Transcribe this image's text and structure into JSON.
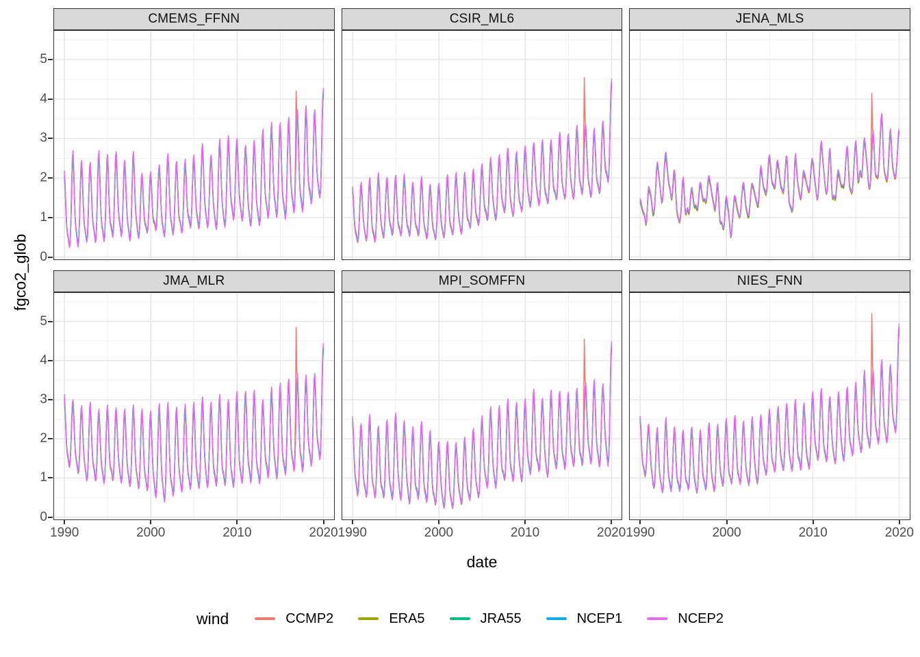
{
  "chart_data": {
    "type": "line",
    "title": "",
    "xlabel": "date",
    "ylabel": "fgco2_glob",
    "legend_title": "wind",
    "legend_position": "bottom",
    "grid": "on",
    "facet_layout": {
      "rows": 2,
      "cols": 3
    },
    "x_domain": [
      1988.8,
      2021.2
    ],
    "y_domain": [
      -0.06,
      5.73
    ],
    "x_major_ticks": [
      1990,
      2000,
      2010,
      2020
    ],
    "x_minor_ticks": [
      1995,
      2005,
      2015
    ],
    "y_major_ticks": [
      0,
      1,
      2,
      3,
      4,
      5
    ],
    "y_minor_ticks": [
      0.5,
      1.5,
      2.5,
      3.5,
      4.5,
      5.5
    ],
    "x_start": 1990,
    "x_end": 2020,
    "points_per_year": 12,
    "seasonal": {
      "h2": 0.3,
      "h2_phase": 0.6
    },
    "series": [
      {
        "name": "CCMP2",
        "color": "#F8766D",
        "amp_scale": 1.02,
        "offset": -0.05
      },
      {
        "name": "ERA5",
        "color": "#A3A500",
        "amp_scale": 0.99,
        "offset": -0.06
      },
      {
        "name": "JRA55",
        "color": "#00BF7D",
        "amp_scale": 1.05,
        "offset": -0.01
      },
      {
        "name": "NCEP1",
        "color": "#00B0F6",
        "amp_scale": 1.0,
        "offset": 0.0
      },
      {
        "name": "NCEP2",
        "color": "#E76BF3",
        "amp_scale": 1.09,
        "offset": 0.02
      }
    ],
    "panels": [
      {
        "name": "CMEMS_FFNN",
        "peaks": [
          2.1,
          2.55,
          2.35,
          2.35,
          2.65,
          2.5,
          2.6,
          2.4,
          2.55,
          2.0,
          2.05,
          2.3,
          2.55,
          2.3,
          2.4,
          2.5,
          2.8,
          2.55,
          2.9,
          3.0,
          2.95,
          2.8,
          2.9,
          3.1,
          3.3,
          3.3,
          3.5,
          3.6,
          3.65,
          3.6,
          4.15
        ],
        "troughs": [
          0.25,
          0.3,
          0.45,
          0.4,
          0.45,
          0.5,
          0.6,
          0.5,
          0.55,
          0.6,
          0.7,
          0.65,
          0.6,
          0.7,
          0.65,
          0.8,
          0.85,
          0.8,
          0.85,
          0.9,
          1.0,
          0.95,
          0.85,
          1.0,
          1.1,
          0.95,
          1.1,
          1.2,
          1.3,
          1.4,
          1.8
        ],
        "noise": 0.09,
        "noise_seed": 11,
        "spike": {
          "series": "CCMP2",
          "x": 2016.8333,
          "width": 0.07,
          "value": 4.2
        }
      },
      {
        "name": "CSIR_ML6",
        "peaks": [
          1.7,
          1.85,
          1.9,
          2.1,
          2.0,
          1.95,
          2.1,
          1.9,
          2.0,
          1.85,
          1.9,
          2.0,
          2.1,
          2.05,
          2.2,
          2.3,
          2.5,
          2.55,
          2.7,
          2.6,
          2.8,
          2.9,
          2.85,
          2.9,
          3.0,
          3.1,
          3.3,
          3.3,
          3.2,
          3.3,
          4.35
        ],
        "troughs": [
          0.45,
          0.5,
          0.45,
          0.55,
          0.6,
          0.55,
          0.6,
          0.55,
          0.6,
          0.5,
          0.55,
          0.6,
          0.7,
          0.65,
          0.8,
          0.9,
          1.0,
          1.1,
          1.2,
          1.1,
          1.3,
          1.4,
          1.35,
          1.4,
          1.5,
          1.55,
          1.6,
          1.65,
          1.6,
          1.7,
          2.1
        ],
        "noise": 0.08,
        "noise_seed": 22,
        "spike": {
          "series": "CCMP2",
          "x": 2016.8333,
          "width": 0.07,
          "value": 4.55
        }
      },
      {
        "name": "JENA_MLS",
        "peaks": [
          1.4,
          1.8,
          2.2,
          2.75,
          2.1,
          1.8,
          1.7,
          1.9,
          2.1,
          1.8,
          1.5,
          1.3,
          1.9,
          2.1,
          2.3,
          2.4,
          2.6,
          2.3,
          2.4,
          2.2,
          2.6,
          2.9,
          2.5,
          2.4,
          2.5,
          2.7,
          2.9,
          3.1,
          3.3,
          3.0,
          3.05
        ],
        "troughs": [
          0.85,
          1.1,
          1.3,
          1.6,
          1.2,
          1.1,
          1.0,
          1.1,
          1.3,
          1.0,
          0.75,
          0.65,
          1.2,
          1.3,
          1.4,
          1.5,
          1.6,
          1.4,
          1.5,
          1.3,
          1.6,
          1.8,
          1.6,
          1.5,
          1.7,
          1.8,
          1.9,
          2.1,
          2.2,
          2.1,
          2.3
        ],
        "noise": 0.3,
        "noise_seed": 33,
        "spike": {
          "series": "CCMP2",
          "x": 2016.8333,
          "width": 0.07,
          "value": 4.15
        }
      },
      {
        "name": "JMA_MLR",
        "peaks": [
          3.0,
          2.9,
          2.75,
          2.8,
          2.7,
          2.8,
          2.75,
          2.7,
          2.8,
          2.65,
          2.7,
          2.75,
          2.8,
          2.7,
          2.75,
          2.8,
          2.9,
          2.85,
          3.0,
          2.9,
          3.1,
          3.2,
          3.1,
          3.0,
          3.2,
          3.3,
          3.5,
          3.6,
          3.5,
          3.6,
          4.4
        ],
        "troughs": [
          1.5,
          1.3,
          1.1,
          1.0,
          0.95,
          0.9,
          1.0,
          0.85,
          0.9,
          0.8,
          0.7,
          0.5,
          0.45,
          0.7,
          0.8,
          0.85,
          0.9,
          0.8,
          0.85,
          0.8,
          0.9,
          1.0,
          0.85,
          0.95,
          1.1,
          1.05,
          1.2,
          1.3,
          1.25,
          1.4,
          1.6
        ],
        "noise": 0.09,
        "noise_seed": 44,
        "spike": {
          "series": "CCMP2",
          "x": 2016.8333,
          "width": 0.07,
          "value": 4.85
        }
      },
      {
        "name": "MPI_SOMFFN",
        "peaks": [
          2.5,
          2.4,
          2.55,
          2.3,
          2.45,
          2.6,
          2.4,
          2.3,
          2.4,
          2.1,
          1.9,
          1.8,
          1.9,
          2.0,
          2.2,
          2.5,
          2.8,
          2.7,
          2.9,
          2.8,
          3.0,
          3.1,
          3.0,
          3.1,
          3.2,
          3.1,
          3.3,
          3.3,
          3.5,
          3.3,
          4.3
        ],
        "troughs": [
          0.6,
          0.55,
          0.6,
          0.5,
          0.55,
          0.6,
          0.5,
          0.45,
          0.5,
          0.4,
          0.3,
          0.28,
          0.3,
          0.4,
          0.55,
          0.7,
          0.9,
          0.85,
          1.0,
          0.95,
          1.1,
          1.2,
          1.1,
          1.2,
          1.3,
          1.25,
          1.35,
          1.4,
          1.5,
          1.4,
          1.55
        ],
        "noise": 0.1,
        "noise_seed": 55,
        "spike": {
          "series": "CCMP2",
          "x": 2016.8333,
          "width": 0.07,
          "value": 4.55
        }
      },
      {
        "name": "NIES_FNN",
        "peaks": [
          2.6,
          2.3,
          2.2,
          2.4,
          2.15,
          2.2,
          2.3,
          2.2,
          2.4,
          2.3,
          2.4,
          2.5,
          2.4,
          2.5,
          2.6,
          2.7,
          2.8,
          2.9,
          3.0,
          2.9,
          3.1,
          3.2,
          3.1,
          3.2,
          3.3,
          3.4,
          3.6,
          3.7,
          3.9,
          3.8,
          4.85
        ],
        "troughs": [
          1.3,
          1.0,
          0.8,
          0.75,
          0.7,
          0.65,
          0.75,
          0.7,
          0.8,
          0.75,
          0.85,
          0.9,
          0.85,
          0.95,
          1.0,
          1.1,
          1.2,
          1.25,
          1.3,
          1.25,
          1.4,
          1.5,
          1.45,
          1.5,
          1.6,
          1.7,
          1.8,
          1.9,
          2.0,
          2.0,
          2.4
        ],
        "noise": 0.09,
        "noise_seed": 66,
        "spike": {
          "series": "CCMP2",
          "x": 2016.8333,
          "width": 0.07,
          "value": 5.2
        }
      }
    ],
    "style": {
      "grid_major_color": "#E4E4E4",
      "grid_minor_color": "#F1F1F1",
      "panel_border_color": "#2f2f2f",
      "strip_fill": "#d9d9d9",
      "axis_text_color": "#4d4d4d"
    }
  }
}
